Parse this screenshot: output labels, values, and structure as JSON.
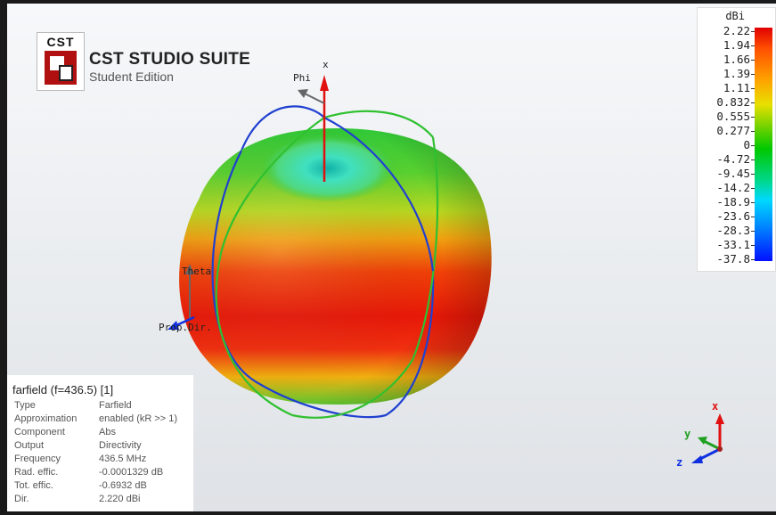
{
  "brand": {
    "logo_text": "CST",
    "title": "CST STUDIO SUITE",
    "subtitle": "Student Edition"
  },
  "axes": {
    "x": "x",
    "phi": "Phi",
    "theta": "Theta",
    "prop_dir": "Prop.Dir."
  },
  "colorbar": {
    "unit": "dBi",
    "ticks": [
      "2.22",
      "1.94",
      "1.66",
      "1.39",
      "1.11",
      "0.832",
      "0.555",
      "0.277",
      "0",
      "-4.72",
      "-9.45",
      "-14.2",
      "-18.9",
      "-23.6",
      "-28.3",
      "-33.1",
      "-37.8"
    ]
  },
  "info": {
    "title": "farfield (f=436.5) [1]",
    "rows": [
      {
        "key": "Type",
        "value": "Farfield"
      },
      {
        "key": "Approximation",
        "value": "enabled (kR >> 1)"
      },
      {
        "key": "Component",
        "value": "Abs"
      },
      {
        "key": "Output",
        "value": "Directivity"
      },
      {
        "key": "Frequency",
        "value": "436.5 MHz"
      },
      {
        "key": "Rad. effic.",
        "value": "-0.0001329 dB"
      },
      {
        "key": "Tot. effic.",
        "value": "-0.6932 dB"
      },
      {
        "key": "Dir.",
        "value": "2.220 dBi"
      }
    ]
  },
  "orientation": {
    "x": "x",
    "y": "y",
    "z": "z"
  },
  "colors": {
    "x_axis": "#e01010",
    "y_axis": "#20a020",
    "z_axis": "#1030e0",
    "phi_ring": "#2040d0",
    "theta_ring": "#30c030"
  }
}
